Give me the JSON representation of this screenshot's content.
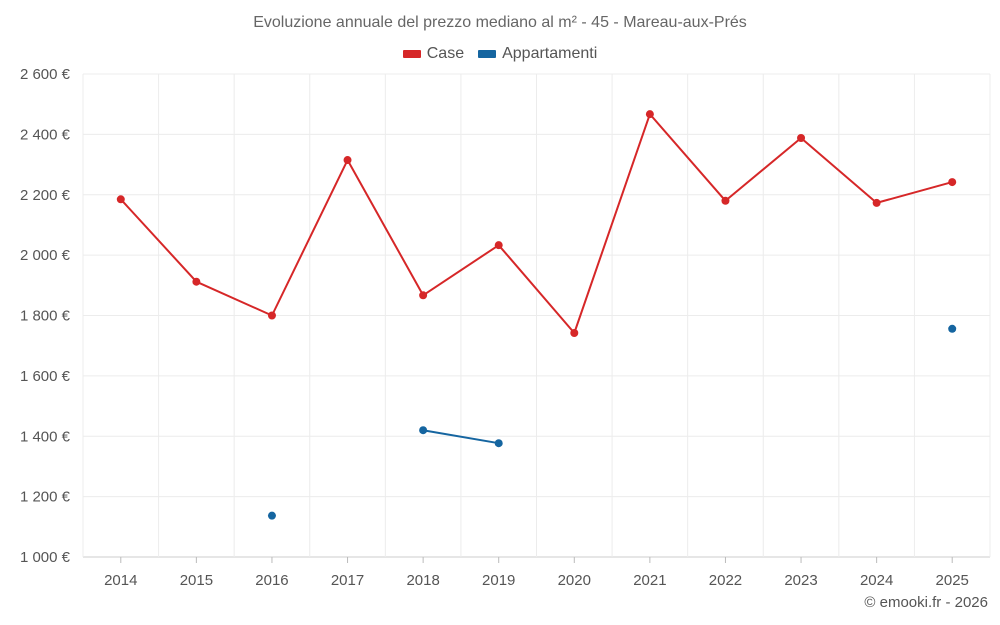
{
  "chart_data": {
    "type": "line",
    "title": "Evoluzione annuale del prezzo mediano al m² - 45 - Mareau-aux-Prés",
    "xlabel": "",
    "ylabel": "",
    "categories": [
      "2014",
      "2015",
      "2016",
      "2017",
      "2018",
      "2019",
      "2020",
      "2021",
      "2022",
      "2023",
      "2024",
      "2025"
    ],
    "ylim": [
      1000,
      2600
    ],
    "yticks": [
      1000,
      1200,
      1400,
      1600,
      1800,
      2000,
      2200,
      2400,
      2600
    ],
    "ytick_labels": [
      "1 000 €",
      "1 200 €",
      "1 400 €",
      "1 600 €",
      "1 800 €",
      "2 000 €",
      "2 200 €",
      "2 400 €",
      "2 600 €"
    ],
    "grid": true,
    "legend_position": "top-center",
    "series": [
      {
        "name": "Case",
        "color": "#d62728",
        "values": [
          2185,
          1912,
          1800,
          2315,
          1867,
          2033,
          1742,
          2467,
          2180,
          2388,
          2173,
          2242
        ]
      },
      {
        "name": "Appartamenti",
        "color": "#1565a0",
        "values": [
          null,
          null,
          1137,
          null,
          1420,
          1377,
          null,
          null,
          null,
          null,
          null,
          1756
        ]
      }
    ]
  },
  "credit": "© emooki.fr - 2026"
}
